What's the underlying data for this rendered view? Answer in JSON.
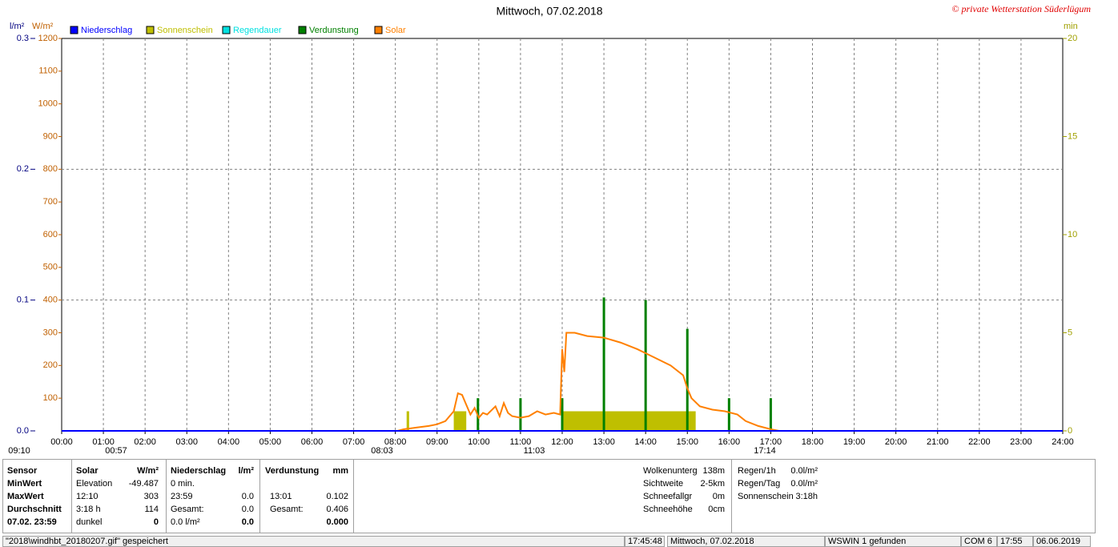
{
  "header": {
    "title": "Mittwoch, 07.02.2018",
    "copyright": "© private Wetterstation Süderlügum"
  },
  "chart_data": {
    "type": "combo",
    "y_label": "l/m²",
    "y2_label": "W/m²",
    "y3_label": "min",
    "xlim": [
      0,
      24
    ],
    "xticks": [
      {
        "value": 0,
        "label": "00:00"
      },
      {
        "value": 1,
        "label": "01:00"
      },
      {
        "value": 2,
        "label": "02:00"
      },
      {
        "value": 3,
        "label": "03:00"
      },
      {
        "value": 4,
        "label": "04:00"
      },
      {
        "value": 5,
        "label": "05:00"
      },
      {
        "value": 6,
        "label": "06:00"
      },
      {
        "value": 7,
        "label": "07:00"
      },
      {
        "value": 8,
        "label": "08:00"
      },
      {
        "value": 9,
        "label": "09:00"
      },
      {
        "value": 10,
        "label": "10:00"
      },
      {
        "value": 11,
        "label": "11:00"
      },
      {
        "value": 12,
        "label": "12:00"
      },
      {
        "value": 13,
        "label": "13:00"
      },
      {
        "value": 14,
        "label": "14:00"
      },
      {
        "value": 15,
        "label": "15:00"
      },
      {
        "value": 16,
        "label": "16:00"
      },
      {
        "value": 17,
        "label": "17:00"
      },
      {
        "value": 18,
        "label": "18:00"
      },
      {
        "value": 19,
        "label": "19:00"
      },
      {
        "value": 20,
        "label": "20:00"
      },
      {
        "value": 21,
        "label": "21:00"
      },
      {
        "value": 22,
        "label": "22:00"
      },
      {
        "value": 23,
        "label": "23:00"
      },
      {
        "value": 24,
        "label": "24:00"
      }
    ],
    "ylim": [
      0,
      0.3
    ],
    "yticks": [
      {
        "value": 0,
        "label": "0.0"
      },
      0.1,
      0.2,
      0.3
    ],
    "y2lim": [
      0,
      1200
    ],
    "y2ticks": [
      100,
      200,
      300,
      400,
      500,
      600,
      700,
      800,
      900,
      1000,
      1100,
      1200
    ],
    "y3lim": [
      0,
      20
    ],
    "y3ticks": [
      0,
      5,
      10,
      15,
      20
    ],
    "grid": true,
    "series": [
      {
        "name": "Niederschlag",
        "color": "#0000ff",
        "type": "line",
        "axis": "y",
        "x": [
          0,
          24
        ],
        "values": [
          0,
          0
        ]
      },
      {
        "name": "Sonnenschein",
        "color": "#bfbf00",
        "type": "interval",
        "axis": "y3",
        "x_start": [
          8.27,
          9.4,
          12.0
        ],
        "x_end": [
          8.33,
          9.7,
          15.2
        ],
        "values": [
          1,
          1,
          1
        ]
      },
      {
        "name": "Regendauer",
        "color": "#00e0e0",
        "type": "line",
        "axis": "y3",
        "x": [],
        "values": []
      },
      {
        "name": "Verdunstung",
        "color": "#008000",
        "type": "bar",
        "axis": "y",
        "x": [
          9.98,
          11.0,
          12.0,
          13.0,
          14.0,
          15.0,
          16.0,
          17.0
        ],
        "values": [
          0.025,
          0.025,
          0.025,
          0.102,
          0.1,
          0.078,
          0.025,
          0.025
        ]
      },
      {
        "name": "Solar",
        "color": "#ff8000",
        "type": "line",
        "axis": "y2",
        "x": [
          0,
          8.05,
          8.2,
          8.5,
          8.8,
          9.0,
          9.2,
          9.4,
          9.5,
          9.6,
          9.7,
          9.8,
          9.9,
          10.0,
          10.1,
          10.2,
          10.4,
          10.5,
          10.6,
          10.7,
          10.8,
          11.0,
          11.2,
          11.4,
          11.6,
          11.8,
          11.95,
          12.0,
          12.05,
          12.1,
          12.3,
          12.6,
          13.0,
          13.4,
          13.8,
          14.2,
          14.6,
          14.9,
          15.0,
          15.1,
          15.3,
          15.6,
          15.9,
          16.2,
          16.4,
          16.7,
          17.0,
          17.2,
          24
        ],
        "values": [
          0,
          0,
          5,
          10,
          15,
          20,
          30,
          60,
          115,
          110,
          80,
          50,
          70,
          40,
          55,
          50,
          75,
          45,
          85,
          55,
          45,
          40,
          45,
          60,
          50,
          55,
          50,
          250,
          180,
          300,
          300,
          290,
          285,
          270,
          250,
          225,
          200,
          170,
          130,
          100,
          75,
          65,
          60,
          50,
          30,
          15,
          5,
          0,
          0
        ]
      }
    ],
    "annotations": [
      "09:10",
      "00:57",
      "08:03",
      "11:03",
      "17:14"
    ]
  },
  "panel": {
    "sensor": [
      "Sensor",
      "MinWert",
      "MaxWert",
      "Durchschnitt",
      "07.02. 23:59"
    ],
    "solar": {
      "header": [
        "Solar",
        "W/m²"
      ],
      "rows": [
        [
          "Elevation",
          "-49.487"
        ],
        [
          "12:10",
          "303"
        ],
        [
          "3:18 h",
          "114"
        ],
        [
          "dunkel",
          "0"
        ]
      ]
    },
    "niederschlag": {
      "header": [
        "Niederschlag",
        "l/m²"
      ],
      "rows": [
        [
          "0 min."
        ],
        [
          "23:59",
          "0.0"
        ],
        [
          "Gesamt:",
          "0.0"
        ],
        [
          "0.0 l/m²",
          "0.0"
        ]
      ]
    },
    "verdunstung": {
      "header": [
        "Verdunstung",
        "mm"
      ],
      "rows": [
        null,
        [
          "13:01",
          "0.102"
        ],
        [
          "Gesamt:",
          "0.406"
        ],
        [
          null,
          "0.000"
        ]
      ]
    },
    "weather": [
      [
        "Wolkenunterg",
        "138m"
      ],
      [
        "Sichtweite",
        "2-5km"
      ],
      [
        "Schneefallgr",
        "0m"
      ],
      [
        "Schneehöhe",
        "0cm"
      ]
    ],
    "rain": [
      [
        "Regen/1h",
        "0.0l/m²"
      ],
      [
        "Regen/Tag",
        "0.0l/m²"
      ],
      [
        "Sonnenschein",
        "3:18h"
      ]
    ]
  },
  "status": [
    "\"2018\\windhbt_20180207.gif\" gespeichert",
    "17:45:48",
    "Mittwoch, 07.02.2018",
    "WSWIN 1 gefunden",
    "COM 6",
    "17:55",
    "06.06.2019"
  ]
}
